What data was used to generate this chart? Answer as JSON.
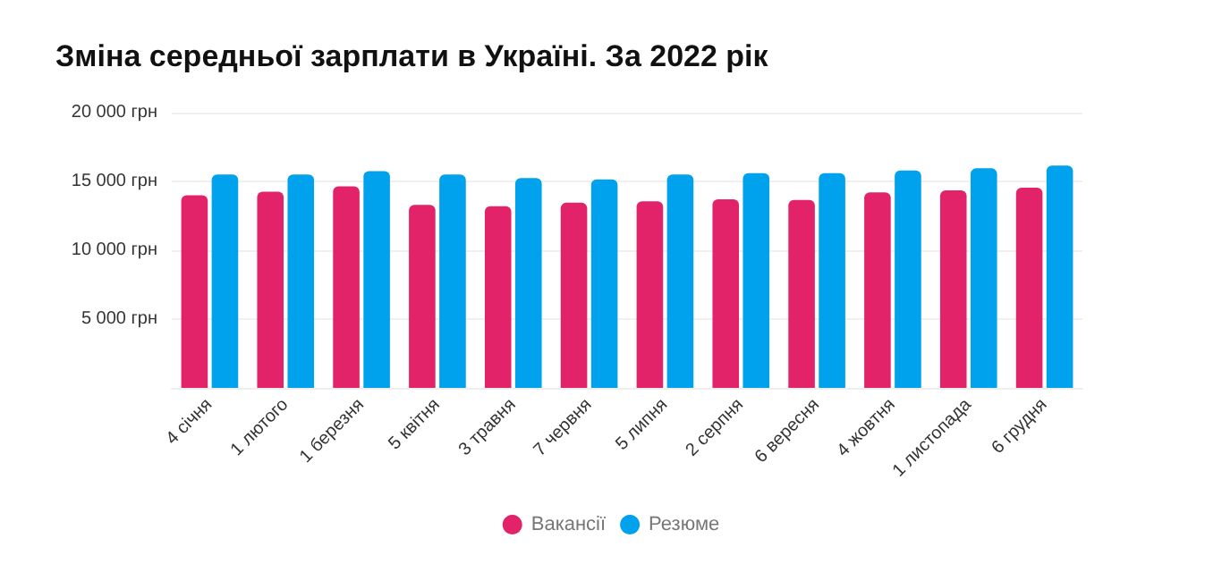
{
  "chart_data": {
    "type": "bar",
    "title": "Зміна середньої зарплати в Україні. За 2022 рік",
    "categories": [
      "4 січня",
      "1 лютого",
      "1 березня",
      "5 квітня",
      "3 травня",
      "7 червня",
      "5 липня",
      "2 серпня",
      "6 вересня",
      "4 жовтня",
      "1 листопада",
      "6 грудня"
    ],
    "series": [
      {
        "name": "Вакансії",
        "color": "#e2236a",
        "values": [
          14000,
          14250,
          14650,
          13300,
          13200,
          13450,
          13550,
          13700,
          13650,
          14200,
          14350,
          14550
        ]
      },
      {
        "name": "Резюме",
        "color": "#00a1ed",
        "values": [
          15500,
          15500,
          15750,
          15500,
          15250,
          15150,
          15500,
          15600,
          15600,
          15800,
          15950,
          16150
        ]
      }
    ],
    "ylim": [
      0,
      20000
    ],
    "yticks": [
      {
        "value": 5000,
        "label": "5 000 грн"
      },
      {
        "value": 10000,
        "label": "10 000 грн"
      },
      {
        "value": 15000,
        "label": "15 000 грн"
      },
      {
        "value": 20000,
        "label": "20 000 грн"
      }
    ],
    "grid": "y",
    "legend": "bottom"
  }
}
